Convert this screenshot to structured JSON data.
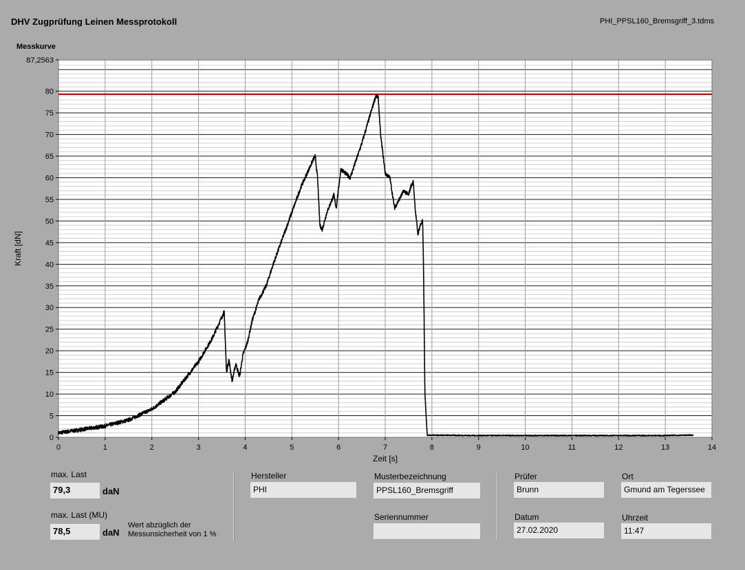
{
  "header": {
    "title": "DHV Zugprüfung Leinen Messprotokoll",
    "filename": "PHI_PPSL160_Bremsgriff_3.tdms"
  },
  "chart_caption": "Messkurve",
  "colors": {
    "trace": "#000000",
    "limit_line": "#c00000",
    "plot_bg": "#ffffff",
    "page_bg": "#ababab"
  },
  "chart_data": {
    "type": "line",
    "title": "Messkurve",
    "xlabel": "Zeit [s]",
    "ylabel": "Kraft [dN]",
    "xlim": [
      0,
      14
    ],
    "ylim": [
      0,
      87.2563
    ],
    "ymax_label": "87,2563",
    "x_ticks": [
      "0",
      "1",
      "2",
      "3",
      "4",
      "5",
      "6",
      "7",
      "8",
      "9",
      "10",
      "11",
      "12",
      "13",
      "14"
    ],
    "y_ticks": [
      "0",
      "5",
      "10",
      "15",
      "20",
      "25",
      "30",
      "35",
      "40",
      "45",
      "50",
      "55",
      "60",
      "65",
      "70",
      "75",
      "80"
    ],
    "grid": true,
    "reference_line": {
      "y": 79.3
    },
    "series": [
      {
        "x": [
          0,
          0.5,
          1.0,
          1.5,
          2.0,
          2.5,
          3.0,
          3.3,
          3.55,
          3.6,
          3.65,
          3.72,
          3.8,
          3.88,
          3.95,
          4.05,
          4.15,
          4.3,
          4.45,
          4.6,
          4.8,
          5.0,
          5.2,
          5.45,
          5.5,
          5.55,
          5.6,
          5.65,
          5.75,
          5.9,
          5.95,
          6.05,
          6.15,
          6.25,
          6.5,
          6.8,
          6.85,
          6.9,
          7.0,
          7.1,
          7.2,
          7.3,
          7.4,
          7.5,
          7.55,
          7.6,
          7.65,
          7.7,
          7.75,
          7.8,
          7.82,
          7.85,
          7.9,
          9,
          10,
          11,
          12,
          13,
          13.6
        ],
        "y": [
          1,
          1.8,
          2.6,
          4,
          6.5,
          10.5,
          17.5,
          23,
          29,
          15,
          18,
          13,
          17,
          14,
          19,
          22,
          27,
          32,
          35,
          40,
          46,
          52,
          58,
          64,
          65,
          60,
          49,
          48,
          52,
          56,
          53,
          62,
          61,
          60,
          68,
          79,
          78.5,
          70,
          61,
          60,
          53,
          55,
          57,
          56,
          58,
          59,
          52,
          47,
          49,
          50,
          40,
          10,
          0.5,
          0.4,
          0.4,
          0.4,
          0.4,
          0.4,
          0.5
        ]
      }
    ]
  },
  "results": {
    "max_last_label": "max. Last",
    "max_last_value": "79,3",
    "max_last_unit": "daN",
    "max_last_mu_label": "max. Last (MU)",
    "max_last_mu_value": "78,5",
    "max_last_mu_unit": "daN",
    "note_line1": "Wert abzüglich der",
    "note_line2": "Messunsicherheit von 1 %"
  },
  "info": {
    "hersteller_label": "Hersteller",
    "hersteller_value": "PHI",
    "musterbezeichnung_label": "Musterbezeichnung",
    "musterbezeichnung_value": "PPSL160_Bremsgriff",
    "seriennummer_label": "Seriennummer",
    "seriennummer_value": "",
    "pruefer_label": "Prüfer",
    "pruefer_value": "Brunn",
    "datum_label": "Datum",
    "datum_value": "27.02.2020",
    "ort_label": "Ort",
    "ort_value": "Gmund am Tegerssee",
    "uhrzeit_label": "Uhrzeit",
    "uhrzeit_value": "11:47"
  }
}
